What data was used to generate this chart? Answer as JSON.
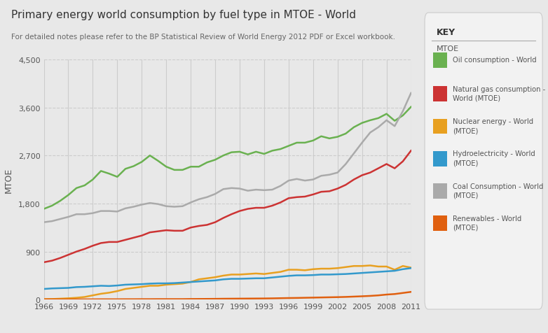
{
  "title": "Primary energy world consumption by fuel type in MTOE - World",
  "subtitle": "For detailed notes please refer to the BP Statistical Review of World Energy 2012 PDF or Excel workbook.",
  "ylabel": "MTOE",
  "bg_color": "#e8e8e8",
  "plot_bg_color": "#e8e8e8",
  "years": [
    1966,
    1967,
    1968,
    1969,
    1970,
    1971,
    1972,
    1973,
    1974,
    1975,
    1976,
    1977,
    1978,
    1979,
    1980,
    1981,
    1982,
    1983,
    1984,
    1985,
    1986,
    1987,
    1988,
    1989,
    1990,
    1991,
    1992,
    1993,
    1994,
    1995,
    1996,
    1997,
    1998,
    1999,
    2000,
    2001,
    2002,
    2003,
    2004,
    2005,
    2006,
    2007,
    2008,
    2009,
    2010,
    2011
  ],
  "oil": [
    1700,
    1760,
    1850,
    1960,
    2090,
    2140,
    2250,
    2410,
    2360,
    2300,
    2450,
    2500,
    2580,
    2700,
    2600,
    2490,
    2430,
    2430,
    2490,
    2490,
    2570,
    2620,
    2700,
    2760,
    2770,
    2720,
    2770,
    2730,
    2790,
    2820,
    2880,
    2940,
    2940,
    2980,
    3060,
    3020,
    3050,
    3110,
    3230,
    3310,
    3360,
    3400,
    3480,
    3350,
    3450,
    3610
  ],
  "gas": [
    700,
    730,
    780,
    840,
    900,
    950,
    1010,
    1060,
    1080,
    1080,
    1120,
    1160,
    1200,
    1260,
    1280,
    1300,
    1290,
    1290,
    1350,
    1380,
    1400,
    1450,
    1530,
    1600,
    1660,
    1700,
    1720,
    1720,
    1760,
    1820,
    1900,
    1920,
    1930,
    1970,
    2020,
    2030,
    2080,
    2150,
    2250,
    2330,
    2380,
    2460,
    2540,
    2460,
    2590,
    2790
  ],
  "nuclear": [
    10,
    12,
    18,
    25,
    35,
    50,
    80,
    110,
    130,
    160,
    200,
    220,
    240,
    260,
    260,
    280,
    290,
    300,
    330,
    380,
    400,
    420,
    450,
    470,
    470,
    480,
    490,
    480,
    500,
    520,
    560,
    560,
    550,
    570,
    580,
    580,
    590,
    610,
    630,
    630,
    640,
    620,
    620,
    560,
    630,
    600
  ],
  "hydro": [
    200,
    210,
    215,
    220,
    235,
    240,
    250,
    260,
    255,
    265,
    280,
    285,
    290,
    300,
    305,
    305,
    310,
    320,
    330,
    340,
    350,
    360,
    380,
    390,
    390,
    395,
    400,
    400,
    415,
    430,
    445,
    455,
    455,
    460,
    470,
    470,
    475,
    480,
    490,
    500,
    510,
    520,
    530,
    540,
    570,
    590
  ],
  "coal": [
    1450,
    1470,
    1510,
    1550,
    1600,
    1600,
    1620,
    1660,
    1660,
    1650,
    1710,
    1740,
    1780,
    1810,
    1790,
    1750,
    1740,
    1750,
    1820,
    1880,
    1920,
    1980,
    2070,
    2090,
    2080,
    2040,
    2060,
    2050,
    2060,
    2130,
    2230,
    2260,
    2230,
    2250,
    2320,
    2340,
    2380,
    2540,
    2740,
    2940,
    3130,
    3230,
    3360,
    3250,
    3530,
    3870
  ],
  "renewables": [
    5,
    5,
    5,
    5,
    5,
    6,
    6,
    7,
    7,
    7,
    8,
    8,
    9,
    9,
    10,
    10,
    10,
    10,
    12,
    13,
    14,
    15,
    17,
    18,
    19,
    20,
    21,
    22,
    24,
    27,
    30,
    32,
    35,
    38,
    41,
    44,
    47,
    51,
    57,
    63,
    70,
    80,
    95,
    105,
    125,
    145
  ],
  "ylim": [
    0,
    4500
  ],
  "yticks": [
    0,
    900,
    1800,
    2700,
    3600,
    4500
  ],
  "ytick_labels": [
    "0",
    "900",
    "1,800",
    "2,700",
    "3,600",
    "4,500"
  ],
  "xtick_years": [
    1966,
    1969,
    1972,
    1975,
    1978,
    1981,
    1984,
    1987,
    1990,
    1993,
    1996,
    1999,
    2002,
    2005,
    2008,
    2011
  ],
  "colors": {
    "oil": "#6ab150",
    "gas": "#cc3333",
    "nuclear": "#e8a020",
    "hydro": "#3399cc",
    "coal": "#aaaaaa",
    "renewables": "#e06010"
  },
  "legend_labels": {
    "oil": "Oil consumption - World",
    "gas": "Natural gas consumption -\nWorld (MTOE)",
    "nuclear": "Nuclear energy - World\n(MTOE)",
    "hydro": "Hydroelectricity - World\n(MTOE)",
    "coal": "Coal Consumption - World\n(MTOE)",
    "renewables": "Renewables - World\n(MTOE)"
  }
}
